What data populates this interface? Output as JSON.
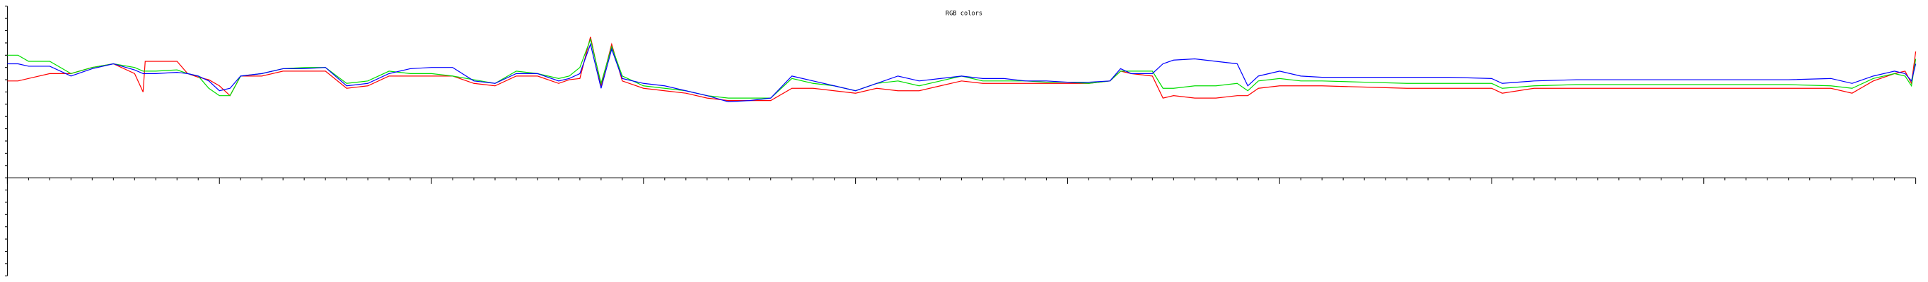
{
  "chart_data": {
    "type": "line",
    "title": "RGB colors",
    "x": [
      0,
      5,
      10,
      20,
      30,
      40,
      50,
      60,
      64,
      65,
      70,
      80,
      85,
      90,
      95,
      100,
      105,
      110,
      120,
      130,
      140,
      150,
      160,
      170,
      180,
      190,
      200,
      210,
      220,
      230,
      240,
      250,
      260,
      265,
      270,
      275,
      280,
      285,
      290,
      300,
      310,
      320,
      330,
      340,
      350,
      360,
      370,
      380,
      390,
      400,
      410,
      420,
      430,
      440,
      450,
      460,
      470,
      480,
      490,
      500,
      510,
      520,
      525,
      530,
      540,
      545,
      550,
      560,
      570,
      580,
      585,
      590,
      600,
      610,
      620,
      640,
      660,
      680,
      700,
      705,
      720,
      740,
      760,
      780,
      800,
      820,
      840,
      860,
      870,
      880,
      890,
      895,
      898,
      900
    ],
    "series": [
      {
        "color": "#ff0000",
        "values": [
          79,
          79,
          81,
          85,
          85,
          90,
          93,
          85,
          70,
          95,
          95,
          95,
          85,
          82,
          80,
          75,
          67,
          83,
          83,
          87,
          87,
          87,
          73,
          75,
          83,
          83,
          83,
          83,
          77,
          75,
          83,
          83,
          77,
          80,
          81,
          115,
          75,
          109,
          79,
          73,
          71,
          69,
          65,
          63,
          63,
          63,
          73,
          73,
          71,
          69,
          73,
          71,
          71,
          75,
          79,
          77,
          77,
          77,
          77,
          77,
          77,
          79,
          87,
          85,
          83,
          65,
          67,
          65,
          65,
          67,
          67,
          73,
          75,
          75,
          75,
          74,
          73,
          73,
          73,
          69,
          73,
          73,
          73,
          73,
          73,
          73,
          73,
          73,
          69,
          79,
          85,
          87,
          77,
          103
        ]
      },
      {
        "color": "#00dd00",
        "values": [
          100,
          100,
          95,
          95,
          85,
          90,
          93,
          90,
          87,
          87,
          87,
          88,
          85,
          83,
          73,
          67,
          67,
          83,
          85,
          89,
          90,
          90,
          77,
          79,
          87,
          85,
          85,
          83,
          80,
          77,
          87,
          85,
          81,
          83,
          90,
          113,
          77,
          107,
          83,
          75,
          73,
          71,
          67,
          65,
          65,
          65,
          81,
          77,
          75,
          71,
          77,
          79,
          75,
          79,
          83,
          79,
          79,
          79,
          78,
          78,
          77,
          79,
          87,
          87,
          87,
          73,
          73,
          75,
          75,
          77,
          71,
          79,
          81,
          79,
          79,
          78,
          77,
          77,
          77,
          73,
          75,
          76,
          76,
          76,
          76,
          76,
          76,
          75,
          73,
          81,
          85,
          83,
          75,
          97
        ]
      },
      {
        "color": "#0000ff",
        "values": [
          93,
          93,
          91,
          91,
          83,
          89,
          93,
          88,
          85,
          85,
          85,
          86,
          85,
          83,
          79,
          71,
          73,
          83,
          85,
          89,
          89,
          90,
          75,
          77,
          85,
          89,
          90,
          90,
          79,
          77,
          85,
          85,
          79,
          81,
          85,
          109,
          73,
          105,
          81,
          77,
          75,
          71,
          67,
          62,
          63,
          65,
          83,
          79,
          75,
          71,
          77,
          83,
          79,
          81,
          83,
          81,
          81,
          79,
          79,
          78,
          78,
          79,
          89,
          85,
          85,
          93,
          96,
          97,
          95,
          93,
          75,
          83,
          87,
          83,
          82,
          82,
          82,
          82,
          81,
          77,
          79,
          80,
          80,
          80,
          80,
          80,
          80,
          81,
          77,
          83,
          87,
          85,
          79,
          93
        ]
      }
    ],
    "xlim": [
      0,
      900
    ],
    "ylim": [
      -80,
      140
    ],
    "xticks": [
      0,
      10,
      20,
      30,
      40,
      50,
      60,
      70,
      80,
      90,
      100,
      110,
      120,
      130,
      140,
      150,
      160,
      170,
      180,
      190,
      200,
      210,
      220,
      230,
      240,
      250,
      260,
      270,
      280,
      290,
      300,
      310,
      320,
      330,
      340,
      350,
      360,
      370,
      380,
      390,
      400,
      410,
      420,
      430,
      440,
      450,
      460,
      470,
      480,
      490,
      500,
      510,
      520,
      530,
      540,
      550,
      560,
      570,
      580,
      590,
      600,
      610,
      620,
      630,
      640,
      650,
      660,
      670,
      680,
      690,
      700,
      710,
      720,
      730,
      740,
      750,
      760,
      770,
      780,
      790,
      800,
      810,
      820,
      830,
      840,
      850,
      860,
      870,
      880,
      890,
      900
    ],
    "yticks": [
      -80,
      -70,
      -60,
      -50,
      -40,
      -30,
      -20,
      -10,
      0,
      10,
      20,
      30,
      40,
      50,
      60,
      70,
      80,
      90,
      100,
      110,
      120,
      130,
      140
    ]
  }
}
